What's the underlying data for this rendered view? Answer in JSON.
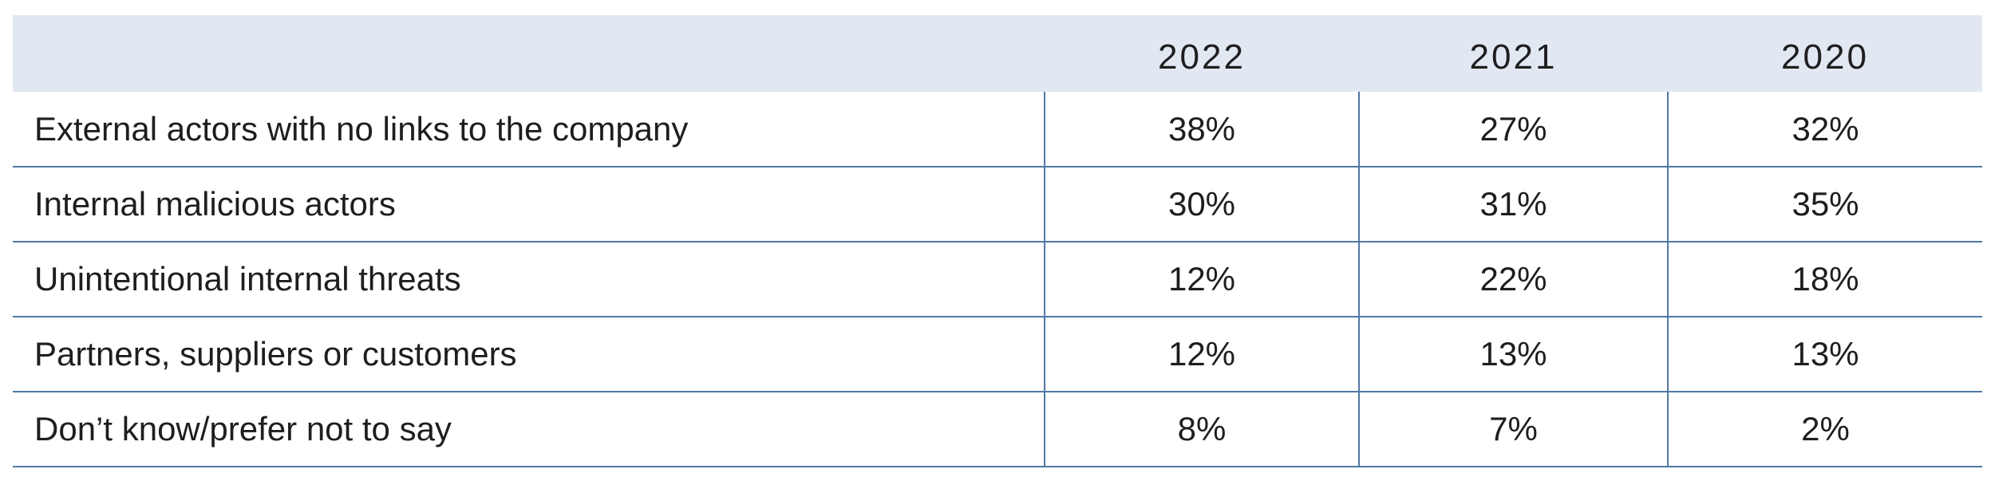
{
  "table": {
    "header": [
      "2022",
      "2021",
      "2020"
    ],
    "rows": [
      {
        "label": "External actors with no links to the company",
        "values": [
          "38%",
          "27%",
          "32%"
        ]
      },
      {
        "label": "Internal malicious actors",
        "values": [
          "30%",
          "31%",
          "35%"
        ]
      },
      {
        "label": "Unintentional internal threats",
        "values": [
          "12%",
          "22%",
          "18%"
        ]
      },
      {
        "label": "Partners, suppliers or customers",
        "values": [
          "12%",
          "13%",
          "13%"
        ]
      },
      {
        "label": "Don’t know/prefer not to say",
        "values": [
          "8%",
          "7%",
          "2%"
        ]
      }
    ]
  }
}
